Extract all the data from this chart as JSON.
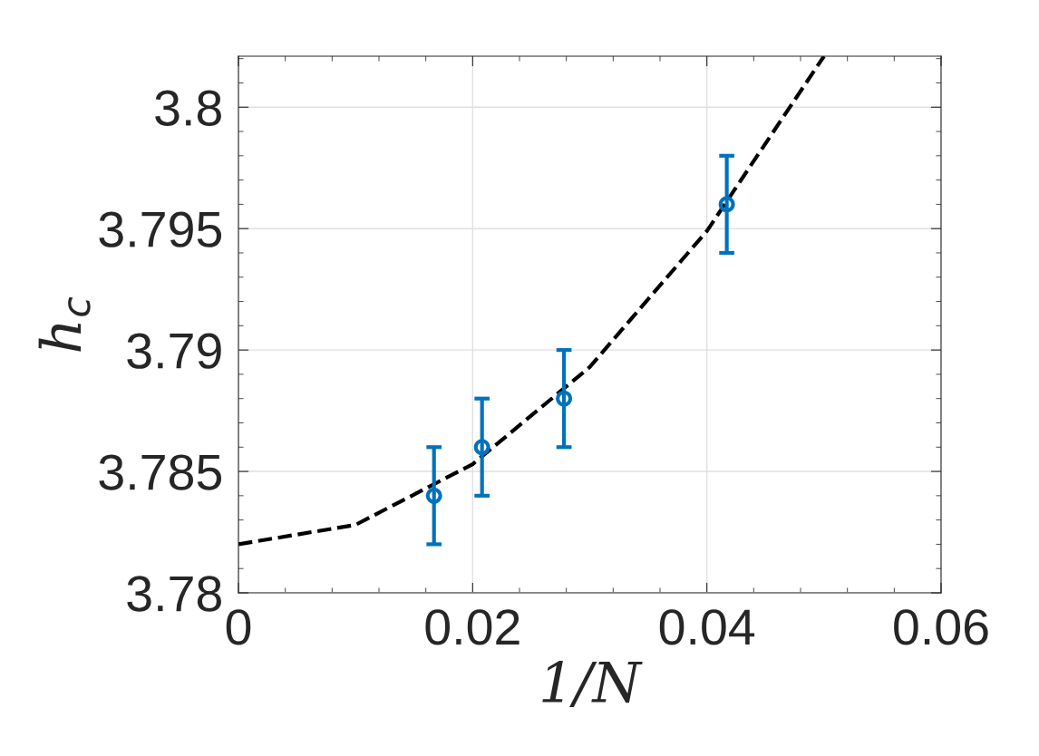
{
  "chart_data": {
    "type": "scatter",
    "xlabel": "1/N",
    "ylabel": "h$_{c}$",
    "series": [
      {
        "color": "#0072bd",
        "x": [
          0.0167,
          0.0208,
          0.0278,
          0.0417
        ],
        "values": [
          3.784,
          3.786,
          3.788,
          3.796
        ],
        "errors": [
          0.002,
          0.002,
          0.002,
          0.002
        ],
        "marker": "circle"
      },
      {
        "type": "line",
        "color": "#000000",
        "x": [
          0,
          0.01,
          0.02,
          0.03,
          0.04,
          0.05
        ],
        "values": [
          3.782,
          3.7828,
          3.7853,
          3.7893,
          3.7949,
          3.8021
        ],
        "line_style": "dashed",
        "marker": "none"
      }
    ],
    "xlim": [
      0,
      0.06
    ],
    "xticks": [
      0,
      0.02,
      0.04,
      0.06
    ],
    "ylim": [
      3.78,
      3.8021
    ],
    "yticks": [
      3.78,
      3.785,
      3.79,
      3.795,
      3.8
    ],
    "grid": true
  }
}
